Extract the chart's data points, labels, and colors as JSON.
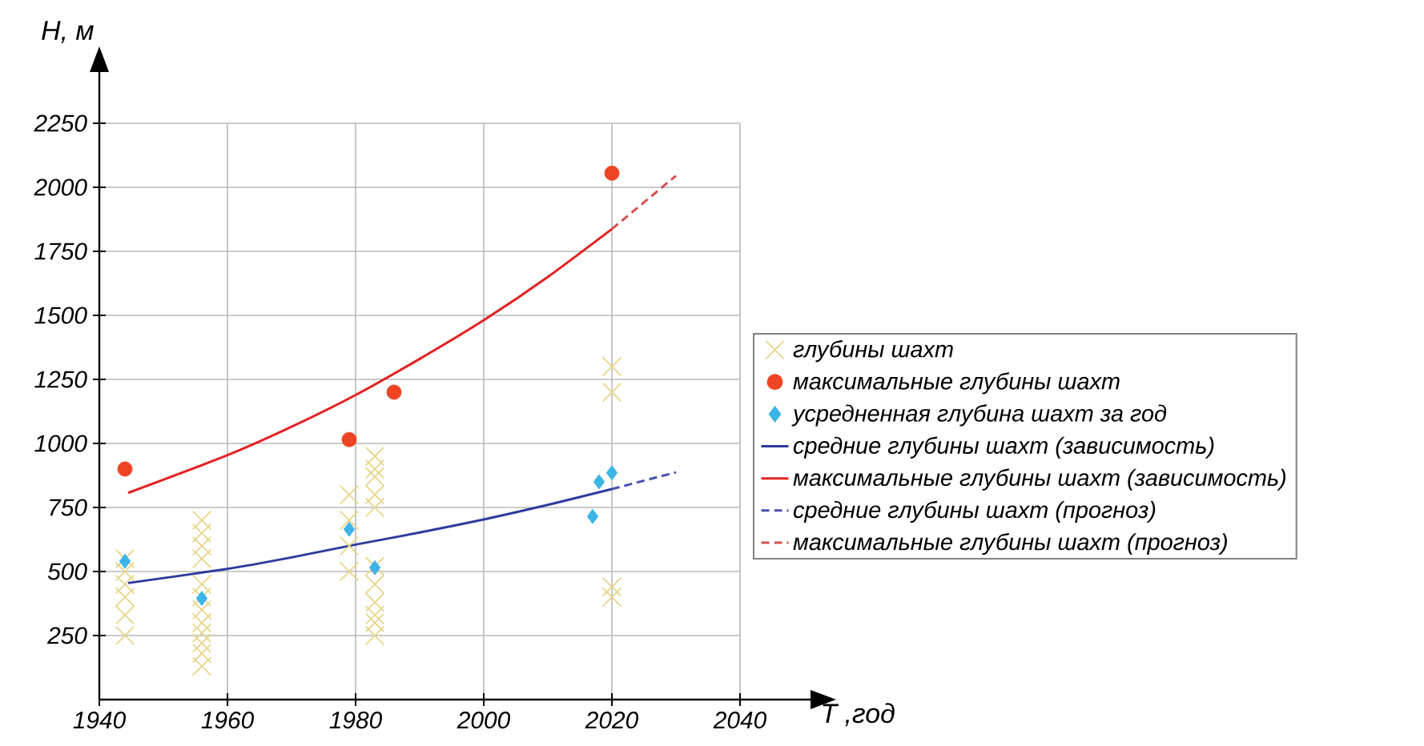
{
  "chart_data": {
    "type": "scatter",
    "xlabel": "T ,год",
    "ylabel": "H, м",
    "xlim": [
      1940,
      2040
    ],
    "ylim": [
      0,
      2250
    ],
    "xticks": [
      1940,
      1960,
      1980,
      2000,
      2020,
      2040
    ],
    "yticks": [
      250,
      500,
      750,
      1000,
      1250,
      1500,
      1750,
      2000,
      2250
    ],
    "grid": true,
    "legend": "right",
    "series": [
      {
        "name": "глубины шахт",
        "marker": "cross",
        "color": "#e6d68a",
        "x": [
          1944,
          1944,
          1944,
          1944,
          1944,
          1944,
          1956,
          1956,
          1956,
          1956,
          1956,
          1956,
          1956,
          1956,
          1956,
          1956,
          1956,
          1956,
          1979,
          1979,
          1979,
          1979,
          1983,
          1983,
          1983,
          1983,
          1983,
          1983,
          1983,
          1983,
          1983,
          1983,
          1983,
          2020,
          2020,
          2020,
          2020
        ],
        "values": [
          250,
          330,
          400,
          450,
          500,
          550,
          130,
          180,
          220,
          260,
          300,
          350,
          400,
          450,
          550,
          600,
          650,
          700,
          500,
          600,
          700,
          800,
          250,
          300,
          330,
          380,
          450,
          520,
          750,
          800,
          870,
          900,
          950,
          400,
          440,
          1200,
          1300
        ]
      },
      {
        "name": "максимальные глубины шахт",
        "marker": "circle",
        "color": "#ef4423",
        "x": [
          1944,
          1979,
          1986,
          2020
        ],
        "values": [
          900,
          1015,
          1200,
          2055
        ]
      },
      {
        "name": "усредненная глубина шахт за год",
        "marker": "diamond",
        "color": "#3bb4e6",
        "x": [
          1944,
          1956,
          1979,
          1983,
          2017,
          2018,
          2020
        ],
        "values": [
          540,
          395,
          665,
          515,
          715,
          850,
          885
        ]
      },
      {
        "name": "средние глубины шахт (зависимость)",
        "type": "line",
        "line_style": "solid",
        "color": "#2e3a9c",
        "x": [
          1944.5,
          1960,
          1970,
          1980,
          1990,
          2000,
          2010,
          2020
        ],
        "values": [
          455,
          510,
          555,
          605,
          652,
          703,
          760,
          822
        ]
      },
      {
        "name": "максимальные глубины шахт (зависимость)",
        "type": "line",
        "line_style": "solid",
        "color": "#e32222",
        "x": [
          1944.5,
          1960,
          1970,
          1980,
          1990,
          2000,
          2010,
          2020
        ],
        "values": [
          807,
          954,
          1065,
          1189,
          1330,
          1481,
          1650,
          1837
        ]
      },
      {
        "name": "средние глубины шахт (прогноз)",
        "type": "line",
        "line_style": "dashed",
        "color": "#4a52b0",
        "x": [
          2020,
          2030
        ],
        "values": [
          822,
          887
        ]
      },
      {
        "name": "максимальные глубины шахт (прогноз)",
        "type": "line",
        "line_style": "dashed",
        "color": "#d85050",
        "x": [
          2020,
          2030
        ],
        "values": [
          1837,
          2045
        ]
      }
    ]
  }
}
